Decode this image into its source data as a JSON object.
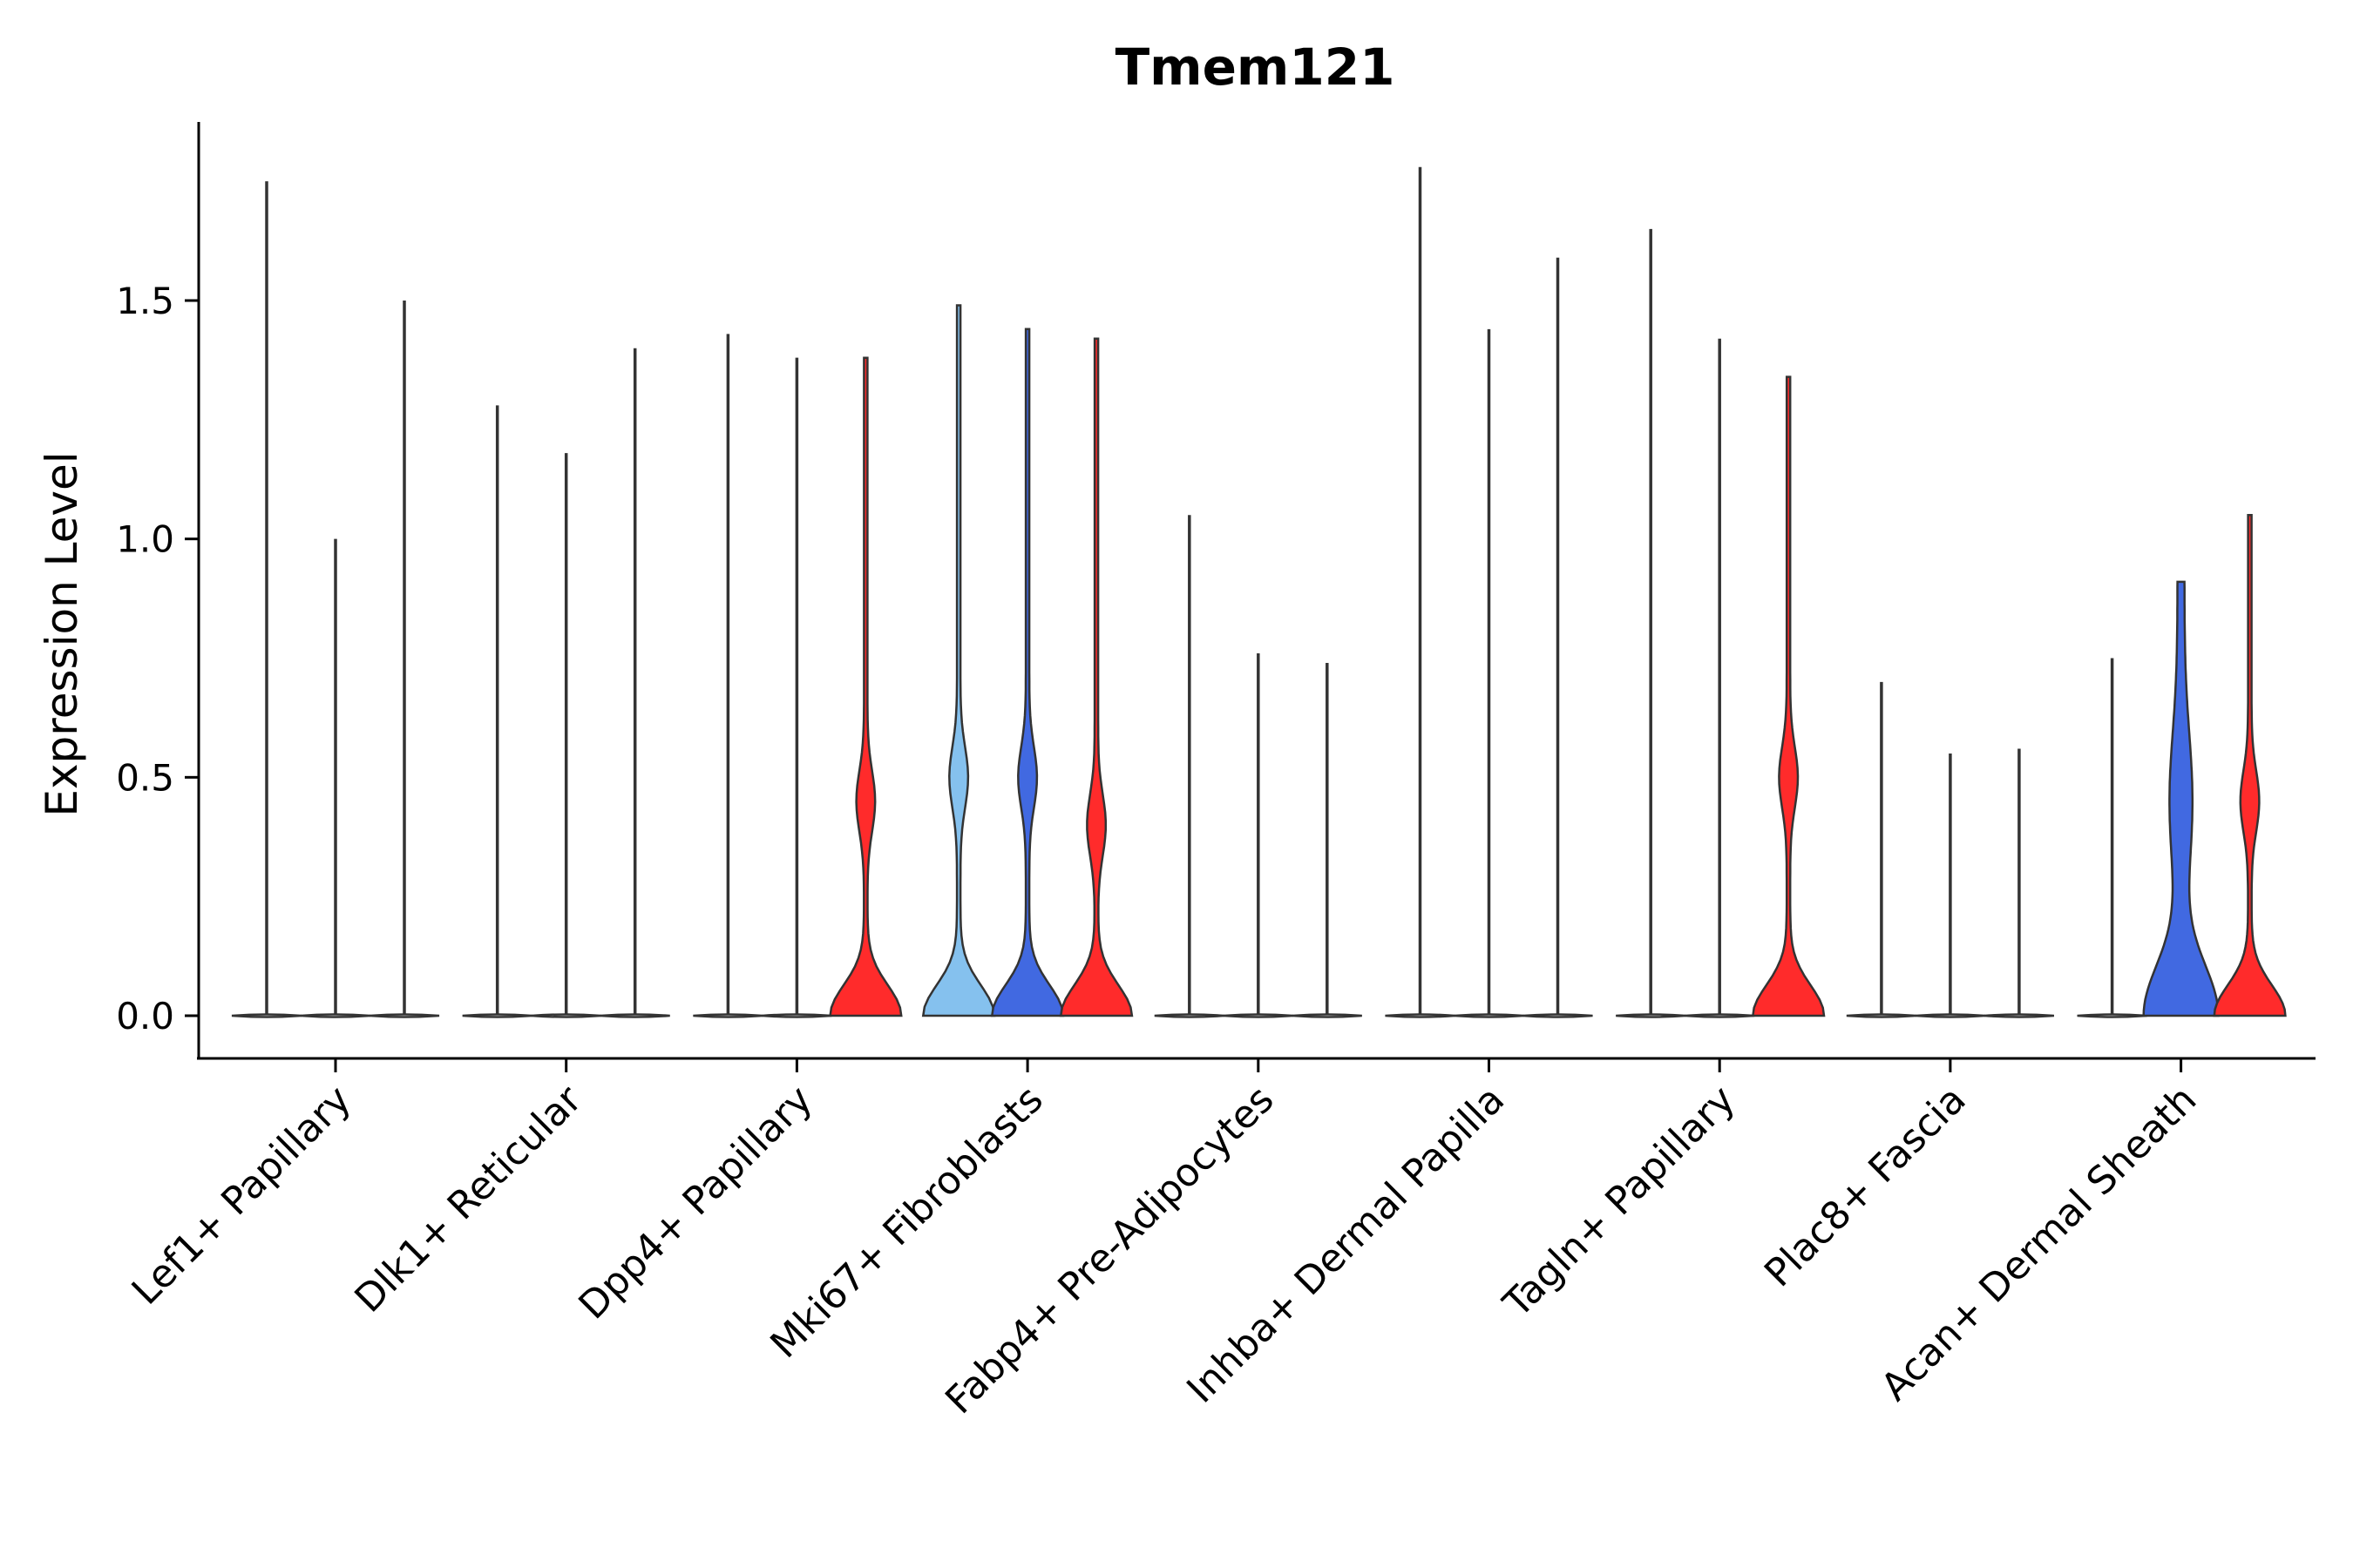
{
  "chart_data": {
    "type": "violin",
    "title": "Tmem121",
    "xlabel": "",
    "ylabel": "Expression Level",
    "ylim": [
      -0.09,
      1.87
    ],
    "yticks": [
      0.0,
      0.5,
      1.0,
      1.5
    ],
    "ytick_labels": [
      "0.0",
      "0.5",
      "1.0",
      "1.5"
    ],
    "split_colors": {
      "light": "#85C1EE",
      "blue": "#4169E1",
      "red": "#FF2B2B"
    },
    "categories": [
      {
        "label": "Lef1+ Papillary",
        "violins": [
          {
            "max": 1.75,
            "color": "none",
            "wide": 0
          },
          {
            "max": 1.0,
            "color": "none",
            "wide": 0
          },
          {
            "max": 1.5,
            "color": "none",
            "wide": 0
          }
        ]
      },
      {
        "label": "Dlk1+ Reticular",
        "violins": [
          {
            "max": 1.28,
            "color": "none",
            "wide": 0
          },
          {
            "max": 1.18,
            "color": "none",
            "wide": 0
          },
          {
            "max": 1.4,
            "color": "none",
            "wide": 0
          }
        ]
      },
      {
        "label": "Dpp4+ Papillary",
        "violins": [
          {
            "max": 1.43,
            "color": "none",
            "wide": 0
          },
          {
            "max": 1.38,
            "color": "none",
            "wide": 0
          },
          {
            "max": 1.38,
            "color": "red",
            "wide": 1,
            "bulge": 0.45
          }
        ]
      },
      {
        "label": "Mki67+ Fibroblasts",
        "violins": [
          {
            "max": 1.49,
            "color": "light",
            "wide": 1,
            "bulge": 0.5
          },
          {
            "max": 1.44,
            "color": "blue",
            "wide": 1,
            "bulge": 0.5
          },
          {
            "max": 1.42,
            "color": "red",
            "wide": 1,
            "bulge": 0.4
          }
        ]
      },
      {
        "label": "Fabp4+ Pre-Adipocytes",
        "violins": [
          {
            "max": 1.05,
            "color": "none",
            "wide": 0
          },
          {
            "max": 0.76,
            "color": "none",
            "wide": 0
          },
          {
            "max": 0.74,
            "color": "none",
            "wide": 0
          }
        ]
      },
      {
        "label": "Inhba+ Dermal Papilla",
        "violins": [
          {
            "max": 1.78,
            "color": "none",
            "wide": 0
          },
          {
            "max": 1.44,
            "color": "none",
            "wide": 0
          },
          {
            "max": 1.59,
            "color": "none",
            "wide": 0
          }
        ]
      },
      {
        "label": "Tagln+ Papillary",
        "violins": [
          {
            "max": 1.65,
            "color": "none",
            "wide": 0
          },
          {
            "max": 1.42,
            "color": "none",
            "wide": 0
          },
          {
            "max": 1.34,
            "color": "red",
            "wide": 1,
            "bulge": 0.5
          }
        ]
      },
      {
        "label": "Plac8+ Fascia",
        "violins": [
          {
            "max": 0.7,
            "color": "none",
            "wide": 0
          },
          {
            "max": 0.55,
            "color": "none",
            "wide": 0
          },
          {
            "max": 0.56,
            "color": "none",
            "wide": 0
          }
        ]
      },
      {
        "label": "Acan+ Dermal Sheath",
        "violins": [
          {
            "max": 0.75,
            "color": "none",
            "wide": 0
          },
          {
            "max": 0.91,
            "color": "blue",
            "wide": 1,
            "bulge": 0.35
          },
          {
            "max": 1.05,
            "color": "red",
            "wide": 1,
            "bulge": 0.45
          }
        ]
      }
    ]
  }
}
